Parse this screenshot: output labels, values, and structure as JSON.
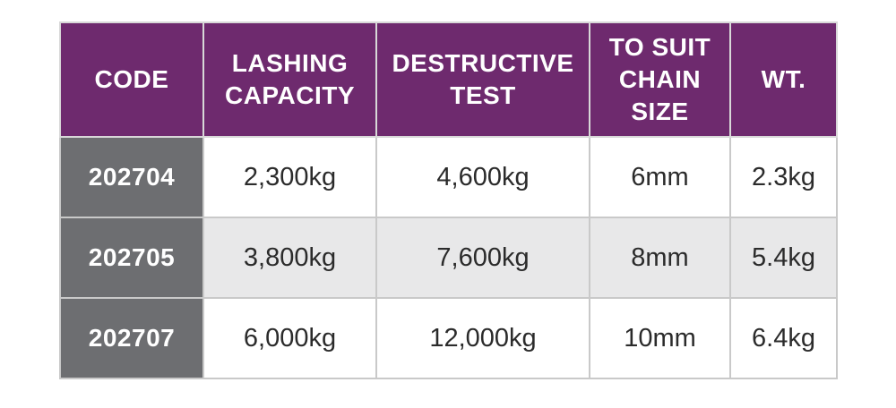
{
  "table": {
    "headers": {
      "code": "CODE",
      "lashing_capacity": "LASHING CAPACITY",
      "destructive_test": "DESTRUCTIVE TEST",
      "chain_size": "TO SUIT CHAIN SIZE",
      "weight": "WT."
    },
    "rows": [
      {
        "code": "202704",
        "lashing_capacity": "2,300kg",
        "destructive_test": "4,600kg",
        "chain_size": "6mm",
        "weight": "2.3kg"
      },
      {
        "code": "202705",
        "lashing_capacity": "3,800kg",
        "destructive_test": "7,600kg",
        "chain_size": "8mm",
        "weight": "5.4kg"
      },
      {
        "code": "202707",
        "lashing_capacity": "6,000kg",
        "destructive_test": "12,000kg",
        "chain_size": "10mm",
        "weight": "6.4kg"
      }
    ],
    "colors": {
      "header_bg": "#6e2a6e",
      "code_col_bg": "#6d6e71",
      "alt_row_bg": "#e8e8e9",
      "border": "#c9c9c9"
    }
  }
}
